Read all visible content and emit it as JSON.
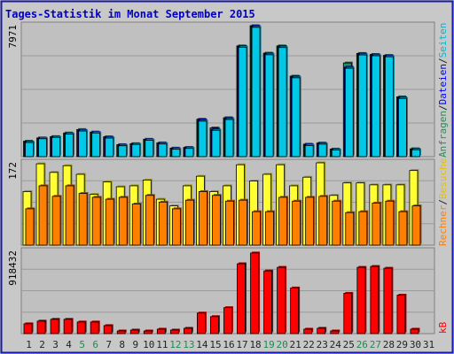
{
  "title": "Tages-Statistik im Monat September 2015",
  "colors": {
    "frame": "#1a1aa6",
    "title": "#0000c8",
    "panel_bg": "#c0c0c0",
    "grid": "#9a9a9a",
    "anfragen": "#2e8b57",
    "dateien": "#0000ff",
    "seiten": "#00c8e6",
    "besuche": "#ffff33",
    "rechner": "#ff8000",
    "kb": "#ff0000",
    "weekend_label": "#1e8a4e",
    "weekday_label": "#222222"
  },
  "legend_right": {
    "top": {
      "parts": [
        {
          "text": "Anfragen",
          "color": "#2e8b57"
        },
        {
          "text": "/",
          "color": "#222222"
        },
        {
          "text": "Dateien",
          "color": "#0000ff"
        },
        {
          "text": "/",
          "color": "#222222"
        },
        {
          "text": "Seiten",
          "color": "#00b8d4"
        }
      ]
    },
    "middle": {
      "parts": [
        {
          "text": "Rechner",
          "color": "#ff8000"
        },
        {
          "text": "/",
          "color": "#222222"
        },
        {
          "text": "Besuche",
          "color": "#e6c000"
        }
      ]
    },
    "bottom": {
      "parts": [
        {
          "text": "kB",
          "color": "#ff0000"
        }
      ]
    }
  },
  "chart_data": [
    {
      "type": "bar",
      "panel": "top",
      "y_max_label": "7971",
      "ylim": [
        0,
        7971
      ],
      "categories": [
        "1",
        "2",
        "3",
        "4",
        "5",
        "6",
        "7",
        "8",
        "9",
        "10",
        "11",
        "12",
        "13",
        "14",
        "15",
        "16",
        "17",
        "18",
        "19",
        "20",
        "21",
        "22",
        "23",
        "24",
        "25",
        "26",
        "27",
        "28",
        "29",
        "30",
        "31"
      ],
      "weekend_days": [
        "5",
        "6",
        "12",
        "13",
        "19",
        "20",
        "26",
        "27"
      ],
      "series": [
        {
          "name": "Anfragen",
          "values": [
            940,
            1140,
            1220,
            1440,
            1650,
            1500,
            1210,
            730,
            790,
            1060,
            840,
            520,
            560,
            2280,
            1750,
            2370,
            6740,
            7971,
            6300,
            6740,
            4900,
            760,
            830,
            460,
            5700,
            6280,
            6220,
            6160,
            3640,
            480,
            0
          ]
        },
        {
          "name": "Dateien",
          "values": [
            900,
            1120,
            1200,
            1400,
            1600,
            1470,
            1170,
            700,
            770,
            1030,
            810,
            490,
            540,
            2230,
            1660,
            2320,
            6710,
            7930,
            6260,
            6700,
            4860,
            720,
            800,
            430,
            5440,
            6250,
            6190,
            6130,
            3590,
            450,
            0
          ]
        },
        {
          "name": "Seiten",
          "values": [
            860,
            1090,
            1170,
            1370,
            1560,
            1440,
            1130,
            660,
            740,
            1000,
            770,
            450,
            500,
            2160,
            1600,
            2260,
            6660,
            7870,
            6200,
            6640,
            4800,
            680,
            760,
            400,
            5380,
            6190,
            6140,
            6080,
            3540,
            420,
            0
          ]
        }
      ]
    },
    {
      "type": "bar",
      "panel": "middle",
      "y_max_label": "172",
      "ylim": [
        0,
        172
      ],
      "categories": [
        "1",
        "2",
        "3",
        "4",
        "5",
        "6",
        "7",
        "8",
        "9",
        "10",
        "11",
        "12",
        "13",
        "14",
        "15",
        "16",
        "17",
        "18",
        "19",
        "20",
        "21",
        "22",
        "23",
        "24",
        "25",
        "26",
        "27",
        "28",
        "29",
        "30",
        "31"
      ],
      "series": [
        {
          "name": "Besuche",
          "values": [
            112,
            170,
            152,
            166,
            148,
            106,
            132,
            122,
            124,
            136,
            96,
            82,
            124,
            144,
            112,
            124,
            168,
            134,
            148,
            168,
            124,
            142,
            172,
            104,
            130,
            130,
            126,
            126,
            126,
            156,
            0
          ]
        },
        {
          "name": "Rechner",
          "values": [
            76,
            124,
            102,
            124,
            108,
            100,
            96,
            100,
            86,
            104,
            90,
            76,
            94,
            112,
            104,
            92,
            94,
            70,
            70,
            100,
            92,
            100,
            102,
            92,
            68,
            70,
            88,
            92,
            70,
            82,
            0
          ]
        }
      ]
    },
    {
      "type": "bar",
      "panel": "bottom",
      "y_max_label": "918432",
      "ylim": [
        0,
        918432
      ],
      "categories": [
        "1",
        "2",
        "3",
        "4",
        "5",
        "6",
        "7",
        "8",
        "9",
        "10",
        "11",
        "12",
        "13",
        "14",
        "15",
        "16",
        "17",
        "18",
        "19",
        "20",
        "21",
        "22",
        "23",
        "24",
        "25",
        "26",
        "27",
        "28",
        "29",
        "30",
        "31"
      ],
      "series": [
        {
          "name": "kB",
          "values": [
            110000,
            140000,
            160000,
            160000,
            130000,
            130000,
            90000,
            30000,
            40000,
            30000,
            50000,
            40000,
            60000,
            230000,
            190000,
            290000,
            780000,
            900000,
            700000,
            740000,
            510000,
            50000,
            60000,
            30000,
            450000,
            740000,
            750000,
            730000,
            430000,
            50000,
            0
          ]
        }
      ]
    }
  ]
}
